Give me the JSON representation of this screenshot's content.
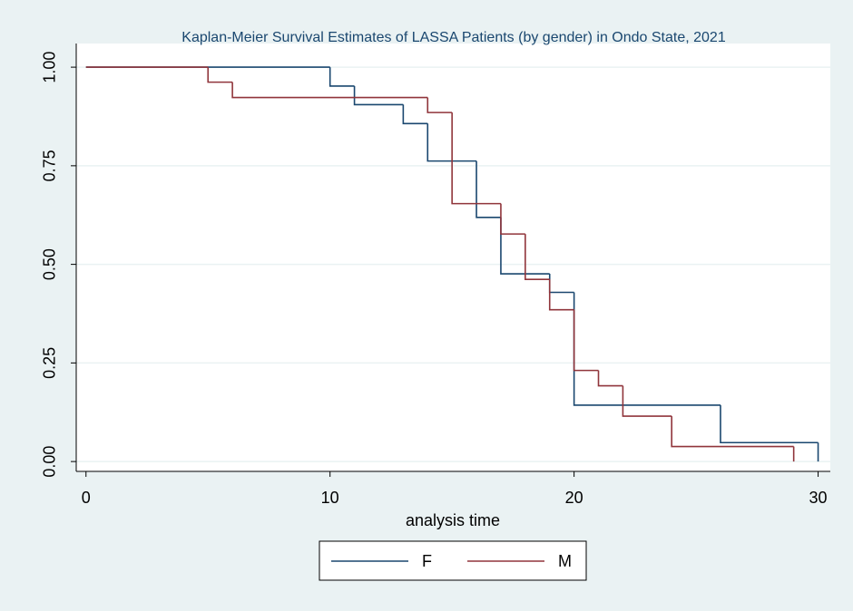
{
  "chart_data": {
    "type": "step",
    "title": "Kaplan-Meier Survival Estimates of LASSA Patients (by gender) in Ondo State, 2021",
    "xlabel": "analysis time",
    "xlim": [
      -0.4,
      30.5
    ],
    "xticks": [
      0,
      10,
      20,
      30
    ],
    "ylim": [
      -0.025,
      1.06
    ],
    "yticks": [
      {
        "value": 0,
        "label": "0.00"
      },
      {
        "value": 0.25,
        "label": "0.25"
      },
      {
        "value": 0.5,
        "label": "0.50"
      },
      {
        "value": 0.75,
        "label": "0.75"
      },
      {
        "value": 1,
        "label": "1.00"
      }
    ],
    "grid": true,
    "legend": "bottom",
    "series": [
      {
        "name": "F",
        "color": "#1a476f",
        "x": [
          0,
          10,
          11,
          13,
          14,
          16,
          17,
          19,
          20,
          26,
          30
        ],
        "values": [
          1,
          0.952,
          0.905,
          0.857,
          0.762,
          0.619,
          0.476,
          0.429,
          0.143,
          0.048,
          0
        ]
      },
      {
        "name": "M",
        "color": "#90353b",
        "x": [
          0,
          5,
          6,
          14,
          15,
          17,
          18,
          19,
          20,
          21,
          22,
          24,
          29
        ],
        "values": [
          1,
          0.962,
          0.923,
          0.885,
          0.654,
          0.577,
          0.462,
          0.385,
          0.231,
          0.192,
          0.115,
          0.038,
          0
        ]
      }
    ]
  }
}
